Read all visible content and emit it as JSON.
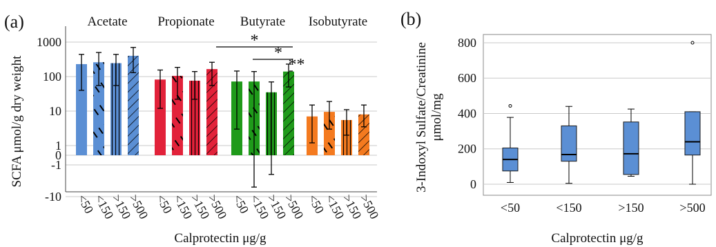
{
  "chart_data": [
    {
      "type": "bar",
      "panel_label": "(a)",
      "title": "",
      "xlabel": "Calprotectin μg/g",
      "ylabel": "SCFA μmol/g dry weight",
      "y_scale": "symlog",
      "ylim": [
        -10,
        1500
      ],
      "yticks": [
        "1000",
        "100",
        "10",
        "1",
        "0",
        "-1",
        "-10"
      ],
      "grid": true,
      "groups": [
        {
          "name": "Acetate",
          "color": "#5b8fd4"
        },
        {
          "name": "Propionate",
          "color": "#e2223a"
        },
        {
          "name": "Butyrate",
          "color": "#1f9a1a"
        },
        {
          "name": "Isobutyrate",
          "color": "#f47a1f"
        }
      ],
      "categories": [
        "<50",
        "<150",
        ">150",
        ">500"
      ],
      "hatch_patterns": [
        "solid",
        "dashed-diagonal",
        "vertical-lines",
        "diagonal-lines"
      ],
      "series": [
        {
          "name": "Acetate",
          "values": [
            230,
            260,
            245,
            400
          ],
          "err_low": [
            40,
            55,
            55,
            130
          ],
          "err_high": [
            440,
            500,
            440,
            700
          ]
        },
        {
          "name": "Propionate",
          "values": [
            82,
            105,
            76,
            165
          ],
          "err_low": [
            12,
            22,
            22,
            55
          ],
          "err_high": [
            155,
            185,
            140,
            260
          ]
        },
        {
          "name": "Butyrate",
          "values": [
            72,
            72,
            35,
            140
          ],
          "err_low": [
            3,
            -5,
            -2,
            50
          ],
          "err_high": [
            145,
            140,
            70,
            230
          ]
        },
        {
          "name": "Isobutyrate",
          "values": [
            7,
            9.5,
            5.5,
            8
          ],
          "err_low": [
            1.2,
            3,
            2,
            3.5
          ],
          "err_high": [
            15,
            19,
            11,
            15
          ]
        }
      ],
      "significance": [
        {
          "label": "*",
          "from": "Butyrate <50",
          "to": "Butyrate >500"
        },
        {
          "label": "*",
          "from": "Butyrate <150",
          "to": "Butyrate >500"
        },
        {
          "label": "**",
          "from": "Butyrate >150",
          "to": "Butyrate >500"
        }
      ]
    },
    {
      "type": "box",
      "panel_label": "(b)",
      "title": "",
      "xlabel": "Calprotectin μg/g",
      "ylabel": "3-Indoxyl Sulfate/Creatinine μmol/mg",
      "ylim": [
        -40,
        860
      ],
      "yticks": [
        "800",
        "600",
        "400",
        "200",
        "0"
      ],
      "grid": true,
      "box_color": "#5b8fd4",
      "categories": [
        "<50",
        "<150",
        ">150",
        ">500"
      ],
      "boxes": [
        {
          "category": "<50",
          "whisker_low": 10,
          "q1": 75,
          "median": 140,
          "q3": 205,
          "whisker_high": 378,
          "outliers": [
            443
          ]
        },
        {
          "category": "<150",
          "whisker_low": 5,
          "q1": 130,
          "median": 168,
          "q3": 330,
          "whisker_high": 440,
          "outliers": []
        },
        {
          "category": ">150",
          "whisker_low": 45,
          "q1": 55,
          "median": 172,
          "q3": 352,
          "whisker_high": 425,
          "outliers": []
        },
        {
          "category": ">500",
          "whisker_low": 0,
          "q1": 165,
          "median": 240,
          "q3": 410,
          "whisker_high": 410,
          "outliers": [
            800
          ]
        }
      ]
    }
  ]
}
